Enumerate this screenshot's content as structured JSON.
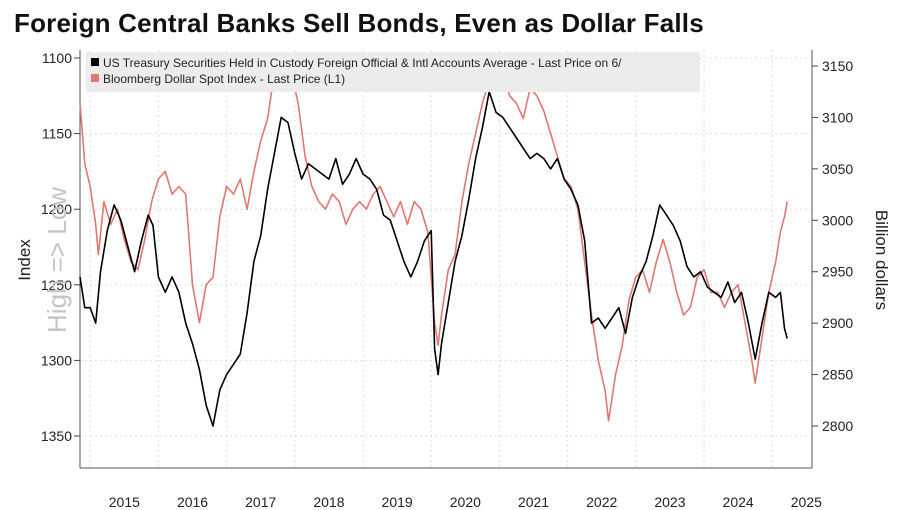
{
  "chart_data": {
    "type": "line",
    "title": "Foreign Central Banks Sell Bonds, Even as Dollar Falls",
    "left_axis_label": "Index",
    "right_axis_label": "Billion dollars",
    "left_axis_annotation": "High => Low",
    "left_axis_inverted": true,
    "left_ylim": [
      1100,
      1350
    ],
    "right_ylim": [
      2800,
      3150
    ],
    "left_ticks": [
      1100,
      1150,
      1200,
      1250,
      1300,
      1350
    ],
    "right_ticks": [
      2800,
      2850,
      2900,
      2950,
      3000,
      3050,
      3100,
      3150
    ],
    "x_ticks": [
      "2015",
      "2016",
      "2017",
      "2018",
      "2019",
      "2020",
      "2021",
      "2022",
      "2023",
      "2024",
      "2025"
    ],
    "grid": true,
    "legend_position": "top-left",
    "series": [
      {
        "name": "US Treasury Securities Held in Custody Foreign Official & Intl Accounts Average - Last Price on 6/",
        "axis": "right",
        "color": "#000000",
        "points": [
          [
            2014.85,
            2945
          ],
          [
            2014.92,
            2915
          ],
          [
            2015.0,
            2915
          ],
          [
            2015.08,
            2900
          ],
          [
            2015.15,
            2950
          ],
          [
            2015.25,
            2990
          ],
          [
            2015.35,
            3015
          ],
          [
            2015.45,
            3000
          ],
          [
            2015.55,
            2975
          ],
          [
            2015.65,
            2950
          ],
          [
            2015.75,
            2980
          ],
          [
            2015.85,
            3005
          ],
          [
            2015.92,
            2995
          ],
          [
            2016.0,
            2945
          ],
          [
            2016.1,
            2930
          ],
          [
            2016.2,
            2945
          ],
          [
            2016.3,
            2930
          ],
          [
            2016.4,
            2900
          ],
          [
            2016.5,
            2880
          ],
          [
            2016.6,
            2855
          ],
          [
            2016.7,
            2820
          ],
          [
            2016.8,
            2800
          ],
          [
            2016.9,
            2835
          ],
          [
            2017.0,
            2850
          ],
          [
            2017.1,
            2860
          ],
          [
            2017.2,
            2870
          ],
          [
            2017.3,
            2910
          ],
          [
            2017.4,
            2960
          ],
          [
            2017.5,
            2985
          ],
          [
            2017.6,
            3030
          ],
          [
            2017.7,
            3065
          ],
          [
            2017.8,
            3100
          ],
          [
            2017.9,
            3095
          ],
          [
            2018.0,
            3065
          ],
          [
            2018.1,
            3040
          ],
          [
            2018.2,
            3055
          ],
          [
            2018.3,
            3050
          ],
          [
            2018.4,
            3045
          ],
          [
            2018.5,
            3040
          ],
          [
            2018.6,
            3060
          ],
          [
            2018.7,
            3035
          ],
          [
            2018.8,
            3045
          ],
          [
            2018.9,
            3060
          ],
          [
            2019.0,
            3045
          ],
          [
            2019.1,
            3040
          ],
          [
            2019.2,
            3030
          ],
          [
            2019.3,
            3005
          ],
          [
            2019.4,
            3000
          ],
          [
            2019.5,
            2980
          ],
          [
            2019.6,
            2960
          ],
          [
            2019.7,
            2945
          ],
          [
            2019.8,
            2960
          ],
          [
            2019.9,
            2980
          ],
          [
            2020.0,
            2990
          ],
          [
            2020.05,
            2875
          ],
          [
            2020.1,
            2850
          ],
          [
            2020.15,
            2880
          ],
          [
            2020.25,
            2920
          ],
          [
            2020.35,
            2960
          ],
          [
            2020.45,
            2985
          ],
          [
            2020.55,
            3020
          ],
          [
            2020.65,
            3060
          ],
          [
            2020.75,
            3090
          ],
          [
            2020.85,
            3125
          ],
          [
            2020.95,
            3105
          ],
          [
            2021.05,
            3100
          ],
          [
            2021.15,
            3090
          ],
          [
            2021.25,
            3080
          ],
          [
            2021.35,
            3070
          ],
          [
            2021.45,
            3060
          ],
          [
            2021.55,
            3065
          ],
          [
            2021.65,
            3060
          ],
          [
            2021.75,
            3050
          ],
          [
            2021.85,
            3060
          ],
          [
            2021.95,
            3040
          ],
          [
            2022.05,
            3030
          ],
          [
            2022.15,
            3015
          ],
          [
            2022.25,
            2980
          ],
          [
            2022.3,
            2940
          ],
          [
            2022.35,
            2900
          ],
          [
            2022.45,
            2905
          ],
          [
            2022.55,
            2895
          ],
          [
            2022.65,
            2905
          ],
          [
            2022.75,
            2915
          ],
          [
            2022.85,
            2890
          ],
          [
            2022.95,
            2925
          ],
          [
            2023.05,
            2945
          ],
          [
            2023.15,
            2960
          ],
          [
            2023.25,
            2985
          ],
          [
            2023.35,
            3015
          ],
          [
            2023.45,
            3005
          ],
          [
            2023.55,
            2995
          ],
          [
            2023.65,
            2980
          ],
          [
            2023.75,
            2955
          ],
          [
            2023.85,
            2945
          ],
          [
            2023.95,
            2950
          ],
          [
            2024.05,
            2935
          ],
          [
            2024.15,
            2930
          ],
          [
            2024.25,
            2925
          ],
          [
            2024.35,
            2940
          ],
          [
            2024.45,
            2920
          ],
          [
            2024.55,
            2930
          ],
          [
            2024.65,
            2900
          ],
          [
            2024.75,
            2865
          ],
          [
            2024.85,
            2900
          ],
          [
            2024.95,
            2930
          ],
          [
            2025.05,
            2925
          ],
          [
            2025.12,
            2930
          ],
          [
            2025.18,
            2895
          ],
          [
            2025.22,
            2885
          ]
        ]
      },
      {
        "name": "Bloomberg Dollar Spot Index - Last Price (L1)",
        "axis": "left",
        "color": "#e07870",
        "points": [
          [
            2014.85,
            1130
          ],
          [
            2014.92,
            1170
          ],
          [
            2015.0,
            1185
          ],
          [
            2015.08,
            1210
          ],
          [
            2015.12,
            1230
          ],
          [
            2015.2,
            1195
          ],
          [
            2015.3,
            1210
          ],
          [
            2015.4,
            1200
          ],
          [
            2015.5,
            1220
          ],
          [
            2015.6,
            1235
          ],
          [
            2015.7,
            1240
          ],
          [
            2015.8,
            1220
          ],
          [
            2015.9,
            1195
          ],
          [
            2016.0,
            1180
          ],
          [
            2016.1,
            1175
          ],
          [
            2016.2,
            1190
          ],
          [
            2016.3,
            1185
          ],
          [
            2016.4,
            1190
          ],
          [
            2016.5,
            1250
          ],
          [
            2016.6,
            1275
          ],
          [
            2016.7,
            1250
          ],
          [
            2016.8,
            1245
          ],
          [
            2016.9,
            1205
          ],
          [
            2017.0,
            1185
          ],
          [
            2017.1,
            1190
          ],
          [
            2017.2,
            1180
          ],
          [
            2017.3,
            1200
          ],
          [
            2017.4,
            1175
          ],
          [
            2017.5,
            1155
          ],
          [
            2017.6,
            1140
          ],
          [
            2017.7,
            1110
          ],
          [
            2017.75,
            1100
          ],
          [
            2017.85,
            1120
          ],
          [
            2017.95,
            1110
          ],
          [
            2018.05,
            1130
          ],
          [
            2018.15,
            1165
          ],
          [
            2018.25,
            1185
          ],
          [
            2018.35,
            1195
          ],
          [
            2018.45,
            1200
          ],
          [
            2018.55,
            1190
          ],
          [
            2018.65,
            1195
          ],
          [
            2018.75,
            1210
          ],
          [
            2018.85,
            1200
          ],
          [
            2018.95,
            1195
          ],
          [
            2019.05,
            1200
          ],
          [
            2019.15,
            1190
          ],
          [
            2019.25,
            1185
          ],
          [
            2019.35,
            1195
          ],
          [
            2019.45,
            1205
          ],
          [
            2019.55,
            1195
          ],
          [
            2019.65,
            1210
          ],
          [
            2019.75,
            1195
          ],
          [
            2019.85,
            1200
          ],
          [
            2019.95,
            1215
          ],
          [
            2020.0,
            1245
          ],
          [
            2020.05,
            1275
          ],
          [
            2020.1,
            1290
          ],
          [
            2020.15,
            1270
          ],
          [
            2020.25,
            1240
          ],
          [
            2020.35,
            1230
          ],
          [
            2020.45,
            1195
          ],
          [
            2020.55,
            1170
          ],
          [
            2020.65,
            1150
          ],
          [
            2020.75,
            1130
          ],
          [
            2020.85,
            1115
          ],
          [
            2020.95,
            1100
          ],
          [
            2021.05,
            1110
          ],
          [
            2021.15,
            1125
          ],
          [
            2021.25,
            1130
          ],
          [
            2021.35,
            1140
          ],
          [
            2021.45,
            1120
          ],
          [
            2021.55,
            1125
          ],
          [
            2021.65,
            1135
          ],
          [
            2021.75,
            1150
          ],
          [
            2021.85,
            1165
          ],
          [
            2021.95,
            1180
          ],
          [
            2022.05,
            1185
          ],
          [
            2022.15,
            1200
          ],
          [
            2022.25,
            1235
          ],
          [
            2022.35,
            1270
          ],
          [
            2022.45,
            1300
          ],
          [
            2022.55,
            1320
          ],
          [
            2022.6,
            1340
          ],
          [
            2022.7,
            1310
          ],
          [
            2022.8,
            1290
          ],
          [
            2022.9,
            1260
          ],
          [
            2023.0,
            1245
          ],
          [
            2023.1,
            1240
          ],
          [
            2023.2,
            1255
          ],
          [
            2023.3,
            1235
          ],
          [
            2023.4,
            1220
          ],
          [
            2023.5,
            1235
          ],
          [
            2023.6,
            1255
          ],
          [
            2023.7,
            1270
          ],
          [
            2023.8,
            1265
          ],
          [
            2023.9,
            1245
          ],
          [
            2024.0,
            1240
          ],
          [
            2024.1,
            1255
          ],
          [
            2024.2,
            1255
          ],
          [
            2024.3,
            1265
          ],
          [
            2024.4,
            1255
          ],
          [
            2024.5,
            1250
          ],
          [
            2024.6,
            1275
          ],
          [
            2024.7,
            1300
          ],
          [
            2024.75,
            1315
          ],
          [
            2024.85,
            1285
          ],
          [
            2024.95,
            1255
          ],
          [
            2025.05,
            1235
          ],
          [
            2025.12,
            1215
          ],
          [
            2025.18,
            1205
          ],
          [
            2025.22,
            1195
          ]
        ]
      }
    ]
  }
}
